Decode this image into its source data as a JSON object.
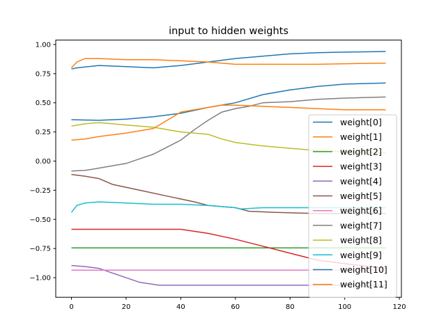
{
  "chart_data": {
    "type": "line",
    "title": "input to hidden weights",
    "xlabel": "",
    "ylabel": "",
    "xlim": [
      -5.75,
      120.75
    ],
    "ylim": [
      -1.168,
      1.038
    ],
    "xticks": [
      0,
      20,
      40,
      60,
      80,
      100,
      120
    ],
    "yticks": [
      1.0,
      0.75,
      0.5,
      0.25,
      0.0,
      -0.25,
      -0.5,
      -0.75,
      -1.0
    ],
    "ytick_labels": [
      "1.00",
      "0.75",
      "0.50",
      "0.25",
      "0.00",
      "−0.25",
      "−0.50",
      "−0.75",
      "−1.00"
    ],
    "grid": false,
    "legend": "center-right",
    "series": [
      {
        "name": "weight[0]",
        "color": "#1f77b4",
        "x": [
          0,
          2,
          10,
          20,
          30,
          35,
          40,
          50,
          60,
          70,
          80,
          90,
          100,
          115
        ],
        "y": [
          0.79,
          0.8,
          0.82,
          0.81,
          0.8,
          0.81,
          0.82,
          0.85,
          0.88,
          0.9,
          0.92,
          0.93,
          0.935,
          0.94
        ]
      },
      {
        "name": "weight[1]",
        "color": "#ff7f0e",
        "x": [
          0,
          2,
          5,
          10,
          20,
          30,
          40,
          50,
          60,
          70,
          80,
          90,
          100,
          115
        ],
        "y": [
          0.8,
          0.85,
          0.88,
          0.88,
          0.87,
          0.87,
          0.86,
          0.85,
          0.83,
          0.83,
          0.83,
          0.83,
          0.835,
          0.84
        ]
      },
      {
        "name": "weight[2]",
        "color": "#2ca02c",
        "x": [
          0,
          115
        ],
        "y": [
          -0.745,
          -0.745
        ]
      },
      {
        "name": "weight[3]",
        "color": "#d62728",
        "x": [
          0,
          40,
          50,
          60,
          70,
          80,
          90,
          100,
          115
        ],
        "y": [
          -0.585,
          -0.585,
          -0.62,
          -0.67,
          -0.73,
          -0.79,
          -0.85,
          -0.88,
          -0.92
        ]
      },
      {
        "name": "weight[4]",
        "color": "#9467bd",
        "x": [
          0,
          5,
          10,
          15,
          20,
          25,
          32,
          115
        ],
        "y": [
          -0.895,
          -0.905,
          -0.92,
          -0.96,
          -1.0,
          -1.04,
          -1.065,
          -1.065
        ]
      },
      {
        "name": "weight[5]",
        "color": "#8c564b",
        "x": [
          0,
          5,
          10,
          15,
          25,
          35,
          45,
          50,
          60,
          65,
          75,
          90,
          115
        ],
        "y": [
          -0.115,
          -0.13,
          -0.15,
          -0.2,
          -0.25,
          -0.3,
          -0.35,
          -0.38,
          -0.4,
          -0.43,
          -0.44,
          -0.45,
          -0.45
        ]
      },
      {
        "name": "weight[6]",
        "color": "#e377c2",
        "x": [
          0,
          115
        ],
        "y": [
          -0.935,
          -0.935
        ]
      },
      {
        "name": "weight[7]",
        "color": "#7f7f7f",
        "x": [
          0,
          5,
          10,
          15,
          20,
          25,
          30,
          35,
          40,
          45,
          50,
          55,
          60,
          65,
          70,
          80,
          90,
          100,
          115
        ],
        "y": [
          -0.085,
          -0.08,
          -0.06,
          -0.04,
          -0.02,
          0.02,
          0.06,
          0.12,
          0.18,
          0.27,
          0.35,
          0.42,
          0.45,
          0.47,
          0.5,
          0.51,
          0.53,
          0.54,
          0.55
        ]
      },
      {
        "name": "weight[8]",
        "color": "#bcbd22",
        "x": [
          0,
          5,
          10,
          15,
          20,
          30,
          35,
          40,
          50,
          55,
          60,
          70,
          80,
          90,
          100,
          115
        ],
        "y": [
          0.3,
          0.32,
          0.33,
          0.32,
          0.31,
          0.29,
          0.27,
          0.25,
          0.23,
          0.19,
          0.16,
          0.13,
          0.11,
          0.09,
          0.08,
          0.07
        ]
      },
      {
        "name": "weight[9]",
        "color": "#17becf",
        "x": [
          0,
          2,
          5,
          10,
          20,
          30,
          40,
          50,
          55,
          60,
          62,
          70,
          100,
          115
        ],
        "y": [
          -0.44,
          -0.38,
          -0.36,
          -0.35,
          -0.36,
          -0.37,
          -0.37,
          -0.38,
          -0.39,
          -0.4,
          -0.41,
          -0.4,
          -0.4,
          -0.4
        ]
      },
      {
        "name": "weight[10]",
        "color": "#1f77b4",
        "x": [
          0,
          10,
          20,
          30,
          40,
          50,
          60,
          70,
          80,
          90,
          100,
          115
        ],
        "y": [
          0.355,
          0.35,
          0.36,
          0.38,
          0.41,
          0.46,
          0.5,
          0.57,
          0.61,
          0.64,
          0.66,
          0.67
        ]
      },
      {
        "name": "weight[11]",
        "color": "#ff7f0e",
        "x": [
          0,
          5,
          10,
          20,
          30,
          35,
          40,
          50,
          55,
          60,
          70,
          80,
          90,
          100,
          115
        ],
        "y": [
          0.18,
          0.19,
          0.21,
          0.24,
          0.28,
          0.35,
          0.42,
          0.46,
          0.48,
          0.48,
          0.47,
          0.46,
          0.45,
          0.44,
          0.44
        ]
      }
    ]
  }
}
